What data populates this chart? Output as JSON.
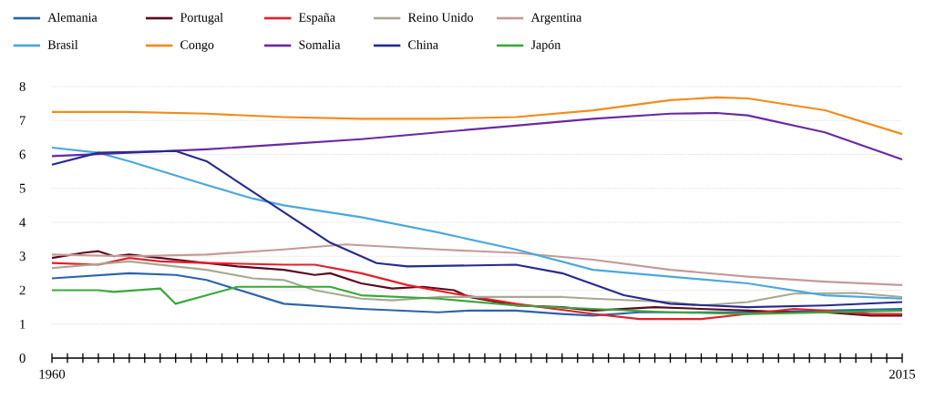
{
  "chart_data": {
    "type": "line",
    "legend": "top",
    "grid": "y",
    "marker": "none",
    "line_style": "solid",
    "xlim": [
      1960,
      2015
    ],
    "ylim": [
      0,
      8
    ],
    "yticks": [
      0,
      1,
      2,
      3,
      4,
      5,
      6,
      7,
      8
    ],
    "xticks": [
      1960,
      {
        "value": 1961,
        "label": null
      },
      {
        "value": 1962,
        "label": null
      },
      {
        "value": 1963,
        "label": null
      },
      {
        "value": 1964,
        "label": null
      },
      {
        "value": 1965,
        "label": null
      },
      {
        "value": 1966,
        "label": null
      },
      {
        "value": 1967,
        "label": null
      },
      {
        "value": 1968,
        "label": null
      },
      {
        "value": 1969,
        "label": null
      },
      {
        "value": 1970,
        "label": null
      },
      {
        "value": 1971,
        "label": null
      },
      {
        "value": 1972,
        "label": null
      },
      {
        "value": 1973,
        "label": null
      },
      {
        "value": 1974,
        "label": null
      },
      {
        "value": 1975,
        "label": null
      },
      {
        "value": 1976,
        "label": null
      },
      {
        "value": 1977,
        "label": null
      },
      {
        "value": 1978,
        "label": null
      },
      {
        "value": 1979,
        "label": null
      },
      {
        "value": 1980,
        "label": null
      },
      {
        "value": 1981,
        "label": null
      },
      {
        "value": 1982,
        "label": null
      },
      {
        "value": 1983,
        "label": null
      },
      {
        "value": 1984,
        "label": null
      },
      {
        "value": 1985,
        "label": null
      },
      {
        "value": 1986,
        "label": null
      },
      {
        "value": 1987,
        "label": null
      },
      {
        "value": 1988,
        "label": null
      },
      {
        "value": 1989,
        "label": null
      },
      {
        "value": 1990,
        "label": null
      },
      {
        "value": 1991,
        "label": null
      },
      {
        "value": 1992,
        "label": null
      },
      {
        "value": 1993,
        "label": null
      },
      {
        "value": 1994,
        "label": null
      },
      {
        "value": 1995,
        "label": null
      },
      {
        "value": 1996,
        "label": null
      },
      {
        "value": 1997,
        "label": null
      },
      {
        "value": 1998,
        "label": null
      },
      {
        "value": 1999,
        "label": null
      },
      {
        "value": 2000,
        "label": null
      },
      {
        "value": 2001,
        "label": null
      },
      {
        "value": 2002,
        "label": null
      },
      {
        "value": 2003,
        "label": null
      },
      {
        "value": 2004,
        "label": null
      },
      {
        "value": 2005,
        "label": null
      },
      {
        "value": 2006,
        "label": null
      },
      {
        "value": 2007,
        "label": null
      },
      {
        "value": 2008,
        "label": null
      },
      {
        "value": 2009,
        "label": null
      },
      {
        "value": 2010,
        "label": null
      },
      {
        "value": 2011,
        "label": null
      },
      {
        "value": 2012,
        "label": null
      },
      {
        "value": 2013,
        "label": null
      },
      {
        "value": 2014,
        "label": null
      },
      2015
    ],
    "series": [
      {
        "name": "Alemania",
        "color": "#2b65a8",
        "x": [
          1960,
          1965,
          1968,
          1970,
          1975,
          1980,
          1985,
          1987,
          1990,
          1993,
          1995,
          1998,
          2005,
          2010,
          2015
        ],
        "values": [
          2.35,
          2.5,
          2.45,
          2.3,
          1.6,
          1.45,
          1.35,
          1.4,
          1.4,
          1.3,
          1.25,
          1.35,
          1.35,
          1.4,
          1.45
        ]
      },
      {
        "name": "Portugal",
        "color": "#5a0a1e",
        "x": [
          1960,
          1962,
          1963,
          1964,
          1965,
          1967,
          1970,
          1972,
          1975,
          1977,
          1978,
          1980,
          1982,
          1984,
          1986,
          1987,
          1990,
          1993,
          1995,
          1999,
          2002,
          2005,
          2008,
          2010,
          2013,
          2015
        ],
        "values": [
          2.95,
          3.1,
          3.15,
          3.0,
          3.05,
          2.95,
          2.8,
          2.7,
          2.6,
          2.45,
          2.5,
          2.2,
          2.05,
          2.1,
          2.0,
          1.8,
          1.55,
          1.5,
          1.4,
          1.5,
          1.45,
          1.4,
          1.35,
          1.35,
          1.25,
          1.25
        ]
      },
      {
        "name": "España",
        "color": "#e3202a",
        "x": [
          1960,
          1963,
          1965,
          1967,
          1970,
          1975,
          1977,
          1980,
          1983,
          1986,
          1990,
          1995,
          1998,
          2002,
          2005,
          2008,
          2010,
          2013,
          2015
        ],
        "values": [
          2.8,
          2.75,
          2.95,
          2.85,
          2.8,
          2.75,
          2.75,
          2.5,
          2.15,
          1.9,
          1.6,
          1.3,
          1.15,
          1.15,
          1.3,
          1.45,
          1.4,
          1.3,
          1.3
        ]
      },
      {
        "name": "Reino Unido",
        "color": "#a8a892",
        "x": [
          1960,
          1965,
          1970,
          1973,
          1975,
          1977,
          1980,
          1982,
          1985,
          1990,
          1993,
          1995,
          2000,
          2002,
          2005,
          2008,
          2012,
          2015
        ],
        "values": [
          2.65,
          2.85,
          2.6,
          2.35,
          2.3,
          2.0,
          1.75,
          1.7,
          1.8,
          1.8,
          1.8,
          1.75,
          1.65,
          1.55,
          1.65,
          1.9,
          1.92,
          1.8
        ]
      },
      {
        "name": "Argentina",
        "color": "#c49a9a",
        "x": [
          1960,
          1965,
          1970,
          1975,
          1979,
          1985,
          1990,
          1995,
          2000,
          2005,
          2010,
          2015
        ],
        "values": [
          3.05,
          3.0,
          3.05,
          3.2,
          3.35,
          3.2,
          3.1,
          2.9,
          2.6,
          2.4,
          2.25,
          2.15
        ]
      },
      {
        "name": "Brasil",
        "color": "#4aa8dc",
        "x": [
          1960,
          1963,
          1965,
          1970,
          1973,
          1975,
          1980,
          1985,
          1990,
          1995,
          2000,
          2005,
          2010,
          2015
        ],
        "values": [
          6.2,
          6.05,
          5.8,
          5.1,
          4.7,
          4.5,
          4.15,
          3.7,
          3.2,
          2.6,
          2.4,
          2.2,
          1.85,
          1.75
        ]
      },
      {
        "name": "Congo",
        "color": "#f08c1a",
        "x": [
          1960,
          1965,
          1970,
          1975,
          1980,
          1985,
          1990,
          1995,
          2000,
          2003,
          2005,
          2010,
          2015
        ],
        "values": [
          7.25,
          7.25,
          7.2,
          7.1,
          7.05,
          7.05,
          7.1,
          7.3,
          7.6,
          7.68,
          7.65,
          7.3,
          6.6
        ]
      },
      {
        "name": "Somalia",
        "color": "#6a2aa0",
        "x": [
          1960,
          1965,
          1970,
          1975,
          1980,
          1985,
          1990,
          1995,
          2000,
          2003,
          2005,
          2010,
          2015
        ],
        "values": [
          5.95,
          6.05,
          6.15,
          6.3,
          6.45,
          6.65,
          6.85,
          7.05,
          7.2,
          7.22,
          7.15,
          6.65,
          5.85
        ]
      },
      {
        "name": "China",
        "color": "#262a8e",
        "x": [
          1960,
          1963,
          1968,
          1970,
          1972,
          1975,
          1978,
          1981,
          1983,
          1990,
          1993,
          1997,
          2000,
          2005,
          2010,
          2015
        ],
        "values": [
          5.7,
          6.05,
          6.1,
          5.8,
          5.2,
          4.3,
          3.4,
          2.8,
          2.7,
          2.75,
          2.5,
          1.85,
          1.6,
          1.5,
          1.55,
          1.65
        ]
      },
      {
        "name": "Japón",
        "color": "#3aa83a",
        "x": [
          1960,
          1963,
          1964,
          1967,
          1968,
          1972,
          1975,
          1978,
          1980,
          1985,
          1990,
          1995,
          2000,
          2005,
          2010,
          2015
        ],
        "values": [
          2.0,
          2.0,
          1.95,
          2.05,
          1.6,
          2.1,
          2.1,
          2.1,
          1.85,
          1.75,
          1.55,
          1.45,
          1.35,
          1.3,
          1.35,
          1.4
        ]
      }
    ]
  }
}
